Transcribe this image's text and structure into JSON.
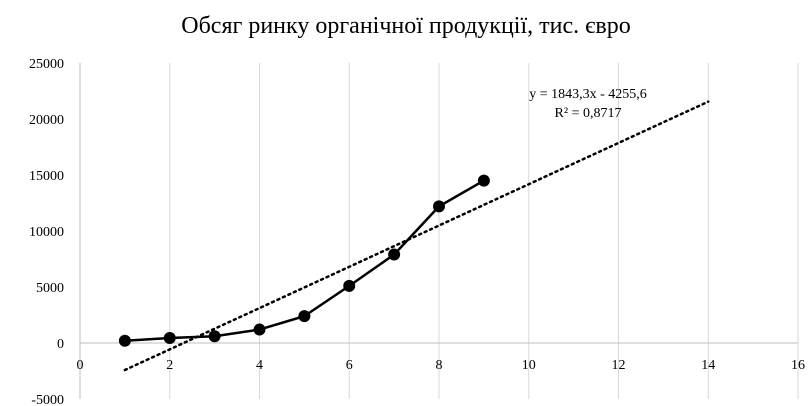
{
  "chart_data": {
    "type": "scatter",
    "title": "Обсяг ринку органічної продукції, тис. євро",
    "xlim": [
      0,
      16
    ],
    "ylim": [
      -5000,
      25000
    ],
    "x_ticks": [
      "0",
      "2",
      "4",
      "6",
      "8",
      "10",
      "12",
      "14",
      "16"
    ],
    "y_ticks": [
      "25000",
      "20000",
      "15000",
      "10000",
      "5000",
      "0",
      "-5000"
    ],
    "grid": "vertical",
    "series": [
      {
        "x": [
          1,
          2,
          3,
          4,
          5,
          6,
          7,
          8,
          9
        ],
        "values": [
          200,
          450,
          600,
          1200,
          2400,
          5100,
          7900,
          12200,
          14500
        ],
        "line_color": "#000000",
        "marker": "circle"
      }
    ],
    "trendline": {
      "type": "linear",
      "slope": 1843.3,
      "intercept": -4255.6,
      "x_range": [
        1,
        14
      ],
      "style": "dotted",
      "equation": "y = 1843,3x - 4255,6",
      "r_squared": "R² = 0,8717"
    }
  }
}
